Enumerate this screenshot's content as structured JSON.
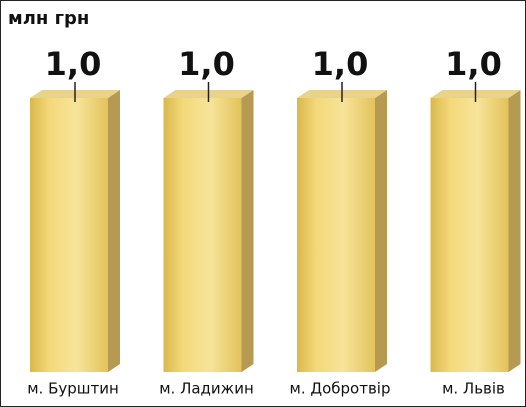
{
  "chart_data": {
    "type": "bar3d",
    "title": "млн грн",
    "categories": [
      "м. Бурштин",
      "м. Ладижин",
      "м. Добротвір",
      "м. Львів"
    ],
    "values": [
      1.0,
      1.0,
      1.0,
      1.0
    ],
    "value_labels": [
      "1,0",
      "1,0",
      "1,0",
      "1,0"
    ],
    "color": "#e6c24a"
  }
}
